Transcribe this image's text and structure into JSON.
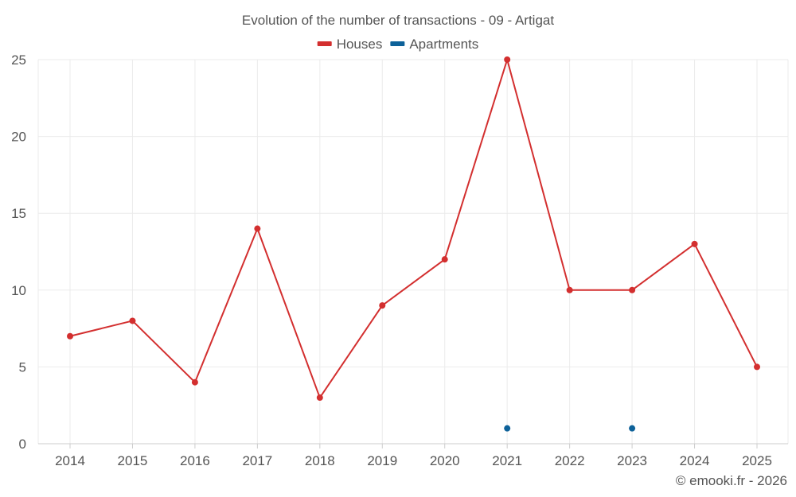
{
  "chart_data": {
    "type": "line",
    "title": "Evolution of the number of transactions - 09 - Artigat",
    "categories": [
      "2014",
      "2015",
      "2016",
      "2017",
      "2018",
      "2019",
      "2020",
      "2021",
      "2022",
      "2023",
      "2024",
      "2025"
    ],
    "ylim": [
      0,
      25
    ],
    "yticks": [
      0,
      5,
      10,
      15,
      20,
      25
    ],
    "grid": true,
    "legend_position": "top-center",
    "series": [
      {
        "name": "Houses",
        "color": "#d32f2f",
        "mode": "line",
        "values": [
          7,
          8,
          4,
          14,
          3,
          9,
          12,
          25,
          10,
          10,
          13,
          5
        ]
      },
      {
        "name": "Apartments",
        "color": "#0d6199",
        "mode": "points",
        "values": [
          null,
          null,
          null,
          null,
          null,
          null,
          null,
          1,
          null,
          1,
          null,
          null
        ]
      }
    ]
  },
  "footer": "© emooki.fr - 2026"
}
